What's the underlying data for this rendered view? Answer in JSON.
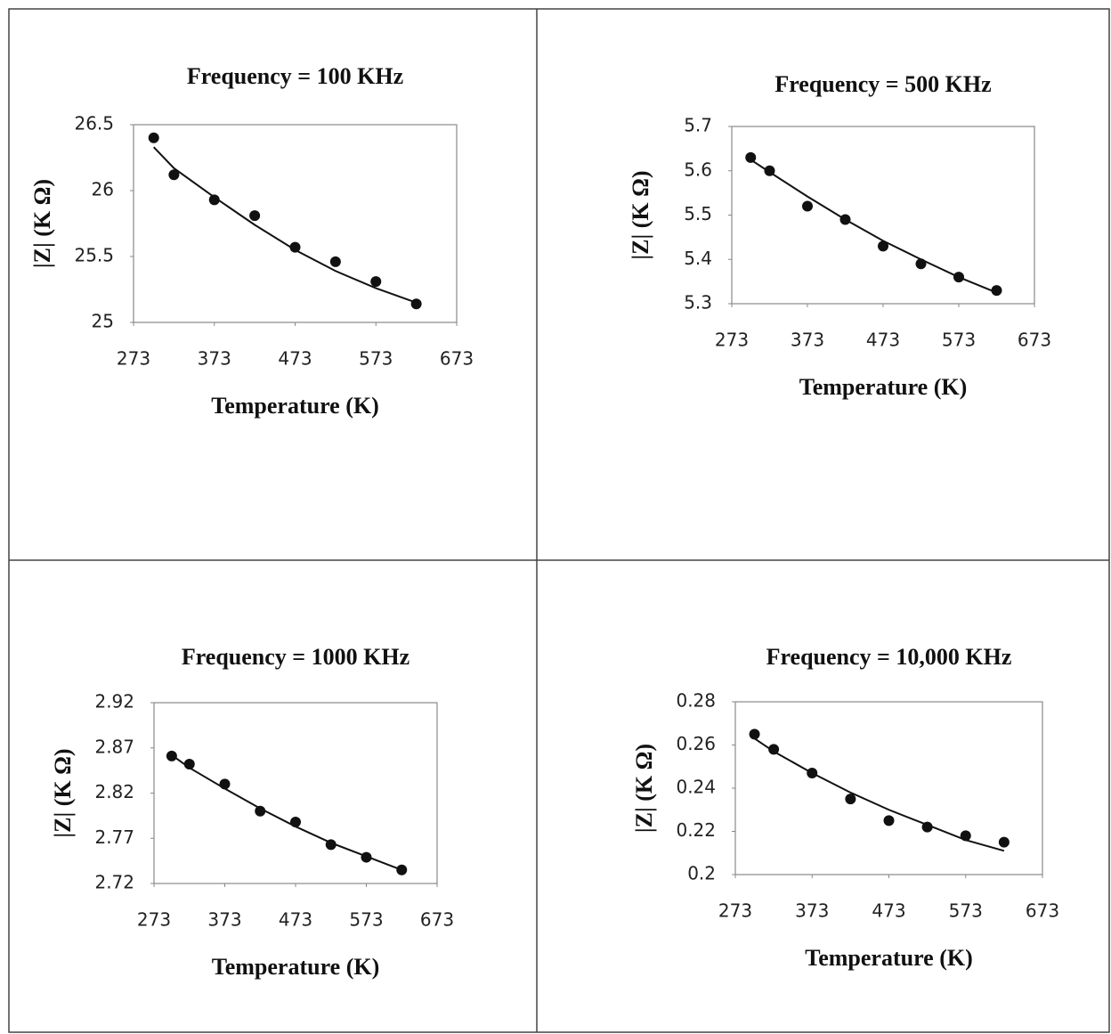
{
  "chart_data": [
    {
      "type": "scatter",
      "title": "Frequency = 100 KHz",
      "x_label": "Temperature (K)",
      "y_label": "|Z| (K Ω)",
      "x": [
        298,
        323,
        373,
        423,
        473,
        523,
        573,
        623
      ],
      "values": [
        26.4,
        26.12,
        25.93,
        25.81,
        25.57,
        25.46,
        25.31,
        25.14
      ],
      "fit": [
        26.33,
        26.17,
        25.95,
        25.74,
        25.55,
        25.39,
        25.26,
        25.15
      ],
      "xlim": [
        273,
        673
      ],
      "xticks": [
        273,
        373,
        473,
        573,
        673
      ],
      "ylim": [
        25,
        26.5
      ],
      "yticks": [
        25,
        25.5,
        26,
        26.5
      ],
      "color": "#111111"
    },
    {
      "type": "scatter",
      "title": "Frequency = 500 KHz",
      "x_label": "Temperature (K)",
      "y_label": "|Z| (K Ω)",
      "x": [
        298,
        323,
        373,
        423,
        473,
        523,
        573,
        623
      ],
      "values": [
        5.63,
        5.6,
        5.52,
        5.49,
        5.43,
        5.39,
        5.36,
        5.33
      ],
      "fit": [
        5.625,
        5.597,
        5.542,
        5.49,
        5.442,
        5.4,
        5.36,
        5.325
      ],
      "xlim": [
        273,
        673
      ],
      "xticks": [
        273,
        373,
        473,
        573,
        673
      ],
      "ylim": [
        5.3,
        5.7
      ],
      "yticks": [
        5.3,
        5.4,
        5.5,
        5.6,
        5.7
      ],
      "color": "#111111"
    },
    {
      "type": "scatter",
      "title": "Frequency = 1000 KHz",
      "x_label": "Temperature (K)",
      "y_label": "|Z| (K Ω)",
      "x": [
        298,
        323,
        373,
        423,
        473,
        523,
        573,
        623
      ],
      "values": [
        2.861,
        2.852,
        2.83,
        2.8,
        2.788,
        2.763,
        2.749,
        2.735
      ],
      "fit": [
        2.862,
        2.848,
        2.825,
        2.803,
        2.783,
        2.765,
        2.75,
        2.735
      ],
      "xlim": [
        273,
        673
      ],
      "xticks": [
        273,
        373,
        473,
        573,
        673
      ],
      "ylim": [
        2.72,
        2.92
      ],
      "yticks": [
        2.72,
        2.77,
        2.82,
        2.87,
        2.92
      ],
      "color": "#111111"
    },
    {
      "type": "scatter",
      "title": "Frequency = 10,000 KHz",
      "x_label": "Temperature (K)",
      "y_label": "|Z| (K Ω)",
      "x": [
        298,
        323,
        373,
        423,
        473,
        523,
        573,
        623
      ],
      "values": [
        0.265,
        0.258,
        0.247,
        0.235,
        0.225,
        0.222,
        0.218,
        0.215
      ],
      "fit": [
        0.263,
        0.257,
        0.247,
        0.238,
        0.23,
        0.223,
        0.216,
        0.211
      ],
      "xlim": [
        273,
        673
      ],
      "xticks": [
        273,
        373,
        473,
        573,
        673
      ],
      "ylim": [
        0.2,
        0.28
      ],
      "yticks": [
        0.2,
        0.22,
        0.24,
        0.26,
        0.28
      ],
      "color": "#111111"
    }
  ]
}
